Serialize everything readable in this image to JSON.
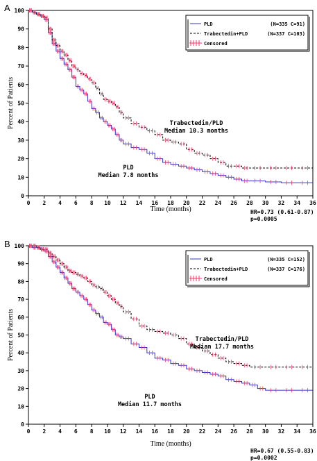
{
  "colors": {
    "pld": "#3333cc",
    "trab": "#000000",
    "censor": "#ff3366"
  },
  "chart_data": [
    {
      "panel": "A",
      "type": "line",
      "xlabel": "Time (months)",
      "ylabel": "Percent of Patients",
      "xlim": [
        0,
        36
      ],
      "ylim": [
        0,
        100
      ],
      "xticks": [
        "0",
        "2",
        "4",
        "6",
        "8",
        "10",
        "12",
        "14",
        "16",
        "18",
        "20",
        "22",
        "24",
        "26",
        "28",
        "30",
        "32",
        "34",
        "36"
      ],
      "yticks": [
        "0",
        "10",
        "20",
        "30",
        "40",
        "50",
        "60",
        "70",
        "80",
        "90",
        "100"
      ],
      "legend": {
        "position": "top-right",
        "entries": [
          {
            "label": "PLD",
            "count": "(N=335 C=91)"
          },
          {
            "label": "Trabectedin+PLD",
            "count": "(N=337 C=103)"
          },
          {
            "label": "Censored",
            "count": ""
          }
        ]
      },
      "annotations": {
        "trab_name": "Trabectedin/PLD",
        "trab_median": "Median 10.3 months",
        "pld_name": "PLD",
        "pld_median": "Median 7.8 months"
      },
      "stats": {
        "hr": "HR=0.73 (0.61-0.87)",
        "p": "p=0.0005"
      },
      "series": [
        {
          "name": "PLD",
          "style": "solid",
          "x": [
            0,
            0.5,
            1,
            1.5,
            2,
            2.5,
            3,
            3.5,
            4,
            4.5,
            5,
            5.5,
            6,
            6.5,
            7,
            7.5,
            8,
            8.5,
            9,
            9.5,
            10,
            10.5,
            11,
            11.5,
            12,
            13,
            14,
            15,
            16,
            17,
            18,
            19,
            20,
            21,
            22,
            23,
            24,
            25,
            26,
            27,
            28,
            30,
            32,
            34,
            36
          ],
          "y": [
            100,
            99,
            98,
            97,
            95,
            88,
            82,
            78,
            74,
            71,
            68,
            64,
            59,
            57,
            55,
            51,
            47,
            45,
            42,
            40,
            38,
            36,
            33,
            30,
            28,
            26,
            25,
            23,
            20,
            18,
            17,
            16,
            15,
            14,
            13,
            12,
            11,
            10,
            9,
            8,
            8,
            7.5,
            7,
            7,
            7
          ]
        },
        {
          "name": "Trabectedin+PLD",
          "style": "dashed",
          "x": [
            0,
            0.5,
            1,
            1.5,
            2,
            2.5,
            3,
            3.5,
            4,
            4.5,
            5,
            5.5,
            6,
            6.5,
            7,
            7.5,
            8,
            8.5,
            9,
            9.5,
            10,
            10.5,
            11,
            11.5,
            12,
            13,
            14,
            15,
            16,
            17,
            18,
            19,
            20,
            21,
            22,
            23,
            24,
            25,
            26,
            27,
            28,
            30,
            32,
            34,
            36
          ],
          "y": [
            100,
            99,
            98,
            97,
            96,
            90,
            84,
            81,
            78,
            76,
            73,
            70,
            68,
            66,
            65,
            63,
            61,
            58,
            55,
            52,
            51,
            50,
            48,
            45,
            42,
            39,
            37,
            35,
            33,
            30,
            29,
            28,
            25,
            23,
            22,
            20,
            18,
            16,
            16,
            15,
            15,
            15,
            15,
            15,
            15
          ]
        }
      ]
    },
    {
      "panel": "B",
      "type": "line",
      "xlabel": "Time (months)",
      "ylabel": "Percent of Patients",
      "xlim": [
        0,
        36
      ],
      "ylim": [
        0,
        100
      ],
      "xticks": [
        "0",
        "2",
        "4",
        "6",
        "8",
        "10",
        "12",
        "14",
        "16",
        "18",
        "20",
        "22",
        "24",
        "26",
        "28",
        "30",
        "32",
        "34",
        "36"
      ],
      "yticks": [
        "0",
        "10",
        "20",
        "30",
        "40",
        "50",
        "60",
        "70",
        "80",
        "90",
        "100"
      ],
      "legend": {
        "position": "top-right",
        "entries": [
          {
            "label": "PLD",
            "count": "(N=335 C=152)"
          },
          {
            "label": "Trabectedin+PLD",
            "count": "(N=337 C=176)"
          },
          {
            "label": "Censored",
            "count": ""
          }
        ]
      },
      "annotations": {
        "trab_name": "Trabectedin/PLD",
        "trab_median": "Median 17.7 months",
        "pld_name": "PLD",
        "pld_median": "Median 11.7 months"
      },
      "stats": {
        "hr": "HR=0.67 (0.55-0.83)",
        "p": "p=0.0002"
      },
      "series": [
        {
          "name": "PLD",
          "style": "solid",
          "x": [
            0,
            0.5,
            1,
            1.5,
            2,
            2.5,
            3,
            3.5,
            4,
            4.5,
            5,
            5.5,
            6,
            6.5,
            7,
            7.5,
            8,
            8.5,
            9,
            9.5,
            10,
            10.5,
            11,
            11.5,
            12,
            13,
            14,
            15,
            16,
            17,
            18,
            19,
            20,
            21,
            22,
            23,
            24,
            25,
            26,
            27,
            28,
            29,
            30,
            32,
            34,
            36
          ],
          "y": [
            100,
            99,
            99,
            98,
            97,
            94,
            91,
            88,
            85,
            82,
            79,
            76,
            74,
            72,
            70,
            67,
            64,
            62,
            60,
            57,
            56,
            53,
            50,
            49,
            48,
            45,
            43,
            40,
            37,
            36,
            34,
            33,
            31,
            30,
            29,
            28,
            27,
            25,
            24,
            23,
            22,
            20,
            19,
            19,
            19,
            19
          ]
        },
        {
          "name": "Trabectedin+PLD",
          "style": "dashed",
          "x": [
            0,
            0.5,
            1,
            1.5,
            2,
            2.5,
            3,
            3.5,
            4,
            4.5,
            5,
            5.5,
            6,
            6.5,
            7,
            7.5,
            8,
            8.5,
            9,
            9.5,
            10,
            10.5,
            11,
            11.5,
            12,
            13,
            14,
            15,
            16,
            17,
            18,
            19,
            20,
            21,
            22,
            23,
            24,
            25,
            26,
            27,
            28,
            30,
            32,
            34,
            36
          ],
          "y": [
            100,
            100,
            99,
            98,
            98,
            96,
            94,
            92,
            90,
            88,
            86,
            85,
            84,
            83,
            82,
            80,
            78,
            77,
            76,
            74,
            72,
            70,
            68,
            66,
            63,
            59,
            55,
            53,
            52,
            51,
            50,
            48,
            45,
            43,
            41,
            39,
            37,
            35,
            34,
            33,
            32,
            32,
            32,
            32,
            32
          ]
        }
      ]
    }
  ]
}
